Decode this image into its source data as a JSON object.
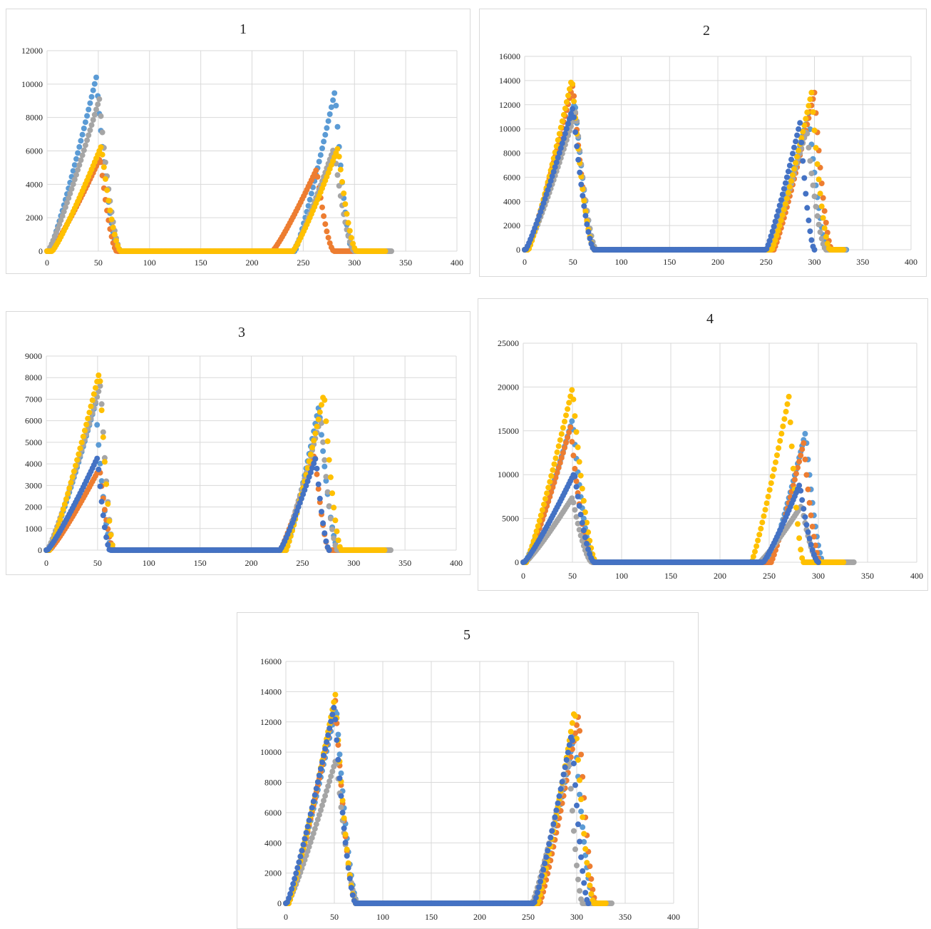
{
  "colors": {
    "series_palette": [
      "#5b9bd5",
      "#ed7d31",
      "#a5a5a5",
      "#ffc000",
      "#4472c4"
    ],
    "grid": "#d9d9d9"
  },
  "chart_data": [
    {
      "type": "scatter",
      "title": "1",
      "xlim": [
        0,
        400
      ],
      "ylim": [
        0,
        12000
      ],
      "x_ticks": [
        "0",
        "50",
        "100",
        "150",
        "200",
        "250",
        "300",
        "350",
        "400"
      ],
      "y_ticks": [
        "0",
        "2000",
        "4000",
        "6000",
        "8000",
        "10000",
        "12000"
      ],
      "grid": true,
      "series": [
        {
          "color": "#5b9bd5",
          "peaks": [
            {
              "start": 2,
              "peak": 48,
              "end": 70,
              "height": 10400
            },
            {
              "start": 242,
              "peak": 281,
              "end": 298,
              "height": 9600
            }
          ],
          "tail_end": 335
        },
        {
          "color": "#ed7d31",
          "peaks": [
            {
              "start": 3,
              "peak": 52,
              "end": 68,
              "height": 5600
            },
            {
              "start": 220,
              "peak": 263,
              "end": 280,
              "height": 4900
            }
          ],
          "tail_end": 300
        },
        {
          "color": "#a5a5a5",
          "peaks": [
            {
              "start": 1,
              "peak": 51,
              "end": 72,
              "height": 9100
            },
            {
              "start": 240,
              "peak": 280,
              "end": 300,
              "height": 6200
            }
          ],
          "tail_end": 336
        },
        {
          "color": "#ffc000",
          "peaks": [
            {
              "start": 5,
              "peak": 53,
              "end": 72,
              "height": 6300
            },
            {
              "start": 240,
              "peak": 284,
              "end": 302,
              "height": 6200
            }
          ],
          "tail_end": 330
        }
      ]
    },
    {
      "type": "scatter",
      "title": "2",
      "xlim": [
        0,
        400
      ],
      "ylim": [
        0,
        16000
      ],
      "x_ticks": [
        "0",
        "50",
        "100",
        "150",
        "200",
        "250",
        "300",
        "350",
        "400"
      ],
      "y_ticks": [
        "0",
        "2000",
        "4000",
        "6000",
        "8000",
        "10000",
        "12000",
        "14000",
        "16000"
      ],
      "grid": true,
      "series": [
        {
          "color": "#5b9bd5",
          "peaks": [
            {
              "start": 2,
              "peak": 52,
              "end": 74,
              "height": 12200
            },
            {
              "start": 252,
              "peak": 294,
              "end": 314,
              "height": 11300
            }
          ],
          "tail_end": 334
        },
        {
          "color": "#ed7d31",
          "peaks": [
            {
              "start": 3,
              "peak": 50,
              "end": 72,
              "height": 13700
            },
            {
              "start": 258,
              "peak": 300,
              "end": 318,
              "height": 13000
            }
          ],
          "tail_end": 330
        },
        {
          "color": "#a5a5a5",
          "peaks": [
            {
              "start": 2,
              "peak": 53,
              "end": 74,
              "height": 11500
            },
            {
              "start": 253,
              "peak": 292,
              "end": 312,
              "height": 10000
            }
          ],
          "tail_end": 332
        },
        {
          "color": "#ffc000",
          "peaks": [
            {
              "start": 4,
              "peak": 49,
              "end": 72,
              "height": 14200
            },
            {
              "start": 256,
              "peak": 297,
              "end": 316,
              "height": 13000
            }
          ],
          "tail_end": 330
        },
        {
          "color": "#4472c4",
          "peaks": [
            {
              "start": 1,
              "peak": 50,
              "end": 72,
              "height": 11800
            },
            {
              "start": 250,
              "peak": 285,
              "end": 300,
              "height": 10500
            }
          ],
          "tail_end": 250
        }
      ]
    },
    {
      "type": "scatter",
      "title": "3",
      "xlim": [
        0,
        400
      ],
      "ylim": [
        0,
        9000
      ],
      "x_ticks": [
        "0",
        "50",
        "100",
        "150",
        "200",
        "250",
        "300",
        "350",
        "400"
      ],
      "y_ticks": [
        "0",
        "1000",
        "2000",
        "3000",
        "4000",
        "5000",
        "6000",
        "7000",
        "8000",
        "9000"
      ],
      "grid": true,
      "series": [
        {
          "color": "#5b9bd5",
          "peaks": [
            {
              "start": 2,
              "peak": 48,
              "end": 64,
              "height": 6800
            },
            {
              "start": 234,
              "peak": 266,
              "end": 285,
              "height": 6700
            }
          ],
          "tail_end": 295
        },
        {
          "color": "#ed7d31",
          "peaks": [
            {
              "start": 3,
              "peak": 52,
              "end": 66,
              "height": 3800
            },
            {
              "start": 228,
              "peak": 262,
              "end": 276,
              "height": 4500
            }
          ],
          "tail_end": 290
        },
        {
          "color": "#a5a5a5",
          "peaks": [
            {
              "start": 1,
              "peak": 53,
              "end": 66,
              "height": 7700
            },
            {
              "start": 230,
              "peak": 268,
              "end": 284,
              "height": 6200
            }
          ],
          "tail_end": 336
        },
        {
          "color": "#ffc000",
          "peaks": [
            {
              "start": 3,
              "peak": 52,
              "end": 66,
              "height": 8300
            },
            {
              "start": 234,
              "peak": 271,
              "end": 288,
              "height": 7300
            }
          ],
          "tail_end": 330
        },
        {
          "color": "#4472c4",
          "peaks": [
            {
              "start": 1,
              "peak": 50,
              "end": 62,
              "height": 4300
            },
            {
              "start": 228,
              "peak": 263,
              "end": 276,
              "height": 4300
            }
          ],
          "tail_end": 228
        }
      ]
    },
    {
      "type": "scatter",
      "title": "4",
      "xlim": [
        0,
        400
      ],
      "ylim": [
        0,
        25000
      ],
      "x_ticks": [
        "0",
        "50",
        "100",
        "150",
        "200",
        "250",
        "300",
        "350",
        "400"
      ],
      "y_ticks": [
        "0",
        "5000",
        "10000",
        "15000",
        "20000",
        "25000"
      ],
      "grid": true,
      "series": [
        {
          "color": "#5b9bd5",
          "peaks": [
            {
              "start": 2,
              "peak": 50,
              "end": 72,
              "height": 16300
            },
            {
              "start": 250,
              "peak": 287,
              "end": 305,
              "height": 14900
            }
          ],
          "tail_end": 330
        },
        {
          "color": "#ed7d31",
          "peaks": [
            {
              "start": 3,
              "peak": 48,
              "end": 70,
              "height": 15400
            },
            {
              "start": 252,
              "peak": 285,
              "end": 302,
              "height": 13600
            }
          ],
          "tail_end": 328
        },
        {
          "color": "#a5a5a5",
          "peaks": [
            {
              "start": 2,
              "peak": 50,
              "end": 70,
              "height": 7400
            },
            {
              "start": 240,
              "peak": 283,
              "end": 300,
              "height": 6500
            }
          ],
          "tail_end": 336
        },
        {
          "color": "#ffc000",
          "peaks": [
            {
              "start": 3,
              "peak": 50,
              "end": 74,
              "height": 19900
            },
            {
              "start": 232,
              "peak": 270,
              "end": 285,
              "height": 18900
            }
          ],
          "tail_end": 326
        },
        {
          "color": "#4472c4",
          "peaks": [
            {
              "start": 1,
              "peak": 52,
              "end": 72,
              "height": 10200
            },
            {
              "start": 244,
              "peak": 281,
              "end": 300,
              "height": 8900
            }
          ],
          "tail_end": 244
        }
      ]
    },
    {
      "type": "scatter",
      "title": "5",
      "xlim": [
        0,
        400
      ],
      "ylim": [
        0,
        16000
      ],
      "x_ticks": [
        "0",
        "50",
        "100",
        "150",
        "200",
        "250",
        "300",
        "350",
        "400"
      ],
      "y_ticks": [
        "0",
        "2000",
        "4000",
        "6000",
        "8000",
        "10000",
        "12000",
        "14000",
        "16000"
      ],
      "grid": true,
      "series": [
        {
          "color": "#5b9bd5",
          "peaks": [
            {
              "start": 2,
              "peak": 52,
              "end": 74,
              "height": 13000
            },
            {
              "start": 260,
              "peak": 298,
              "end": 318,
              "height": 11400
            }
          ],
          "tail_end": 330
        },
        {
          "color": "#ed7d31",
          "peaks": [
            {
              "start": 3,
              "peak": 51,
              "end": 72,
              "height": 13400
            },
            {
              "start": 262,
              "peak": 302,
              "end": 320,
              "height": 12500
            }
          ],
          "tail_end": 328
        },
        {
          "color": "#a5a5a5",
          "peaks": [
            {
              "start": 2,
              "peak": 52,
              "end": 74,
              "height": 9600
            },
            {
              "start": 254,
              "peak": 292,
              "end": 306,
              "height": 9700
            }
          ],
          "tail_end": 336
        },
        {
          "color": "#ffc000",
          "peaks": [
            {
              "start": 3,
              "peak": 51,
              "end": 72,
              "height": 13800
            },
            {
              "start": 260,
              "peak": 298,
              "end": 318,
              "height": 12900
            }
          ],
          "tail_end": 330
        },
        {
          "color": "#4472c4",
          "peaks": [
            {
              "start": 1,
              "peak": 50,
              "end": 72,
              "height": 13100
            },
            {
              "start": 256,
              "peak": 295,
              "end": 312,
              "height": 11300
            }
          ],
          "tail_end": 256
        }
      ]
    }
  ]
}
